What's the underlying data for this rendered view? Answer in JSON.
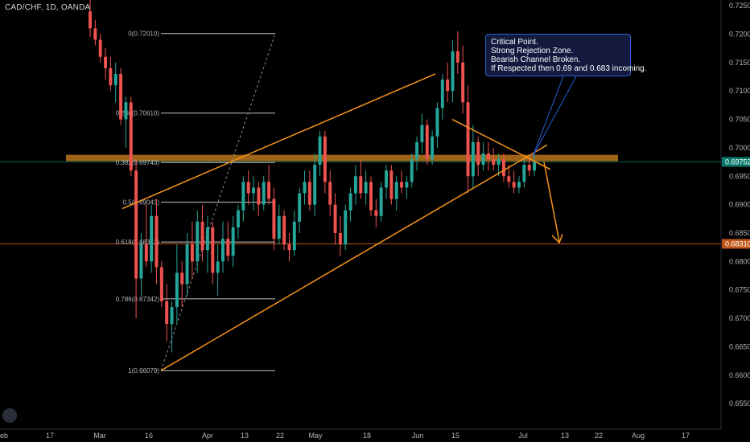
{
  "header": {
    "symbol_line": "CAD/CHF, 1D, OANDA"
  },
  "callout": {
    "lines": [
      "Critical Point.",
      "Strong Rejection Zone.",
      "Bearish Channel Broken.",
      "If Respected then 0.69 and 0.683 incoming."
    ]
  },
  "colors": {
    "background": "#000000",
    "up": "#26a69a",
    "down": "#ef5350",
    "trend": "#f7941d",
    "zone": "#b8741a",
    "price_badge": "#0b7a6e",
    "target_badge": "#c0571a",
    "callout_bg": "#131a3e",
    "callout_border": "#2a5fd6"
  },
  "chart_data": {
    "type": "candlestick",
    "title": "CAD/CHF, 1D, OANDA",
    "ylim": [
      0.6505,
      0.726
    ],
    "y_ticks": [
      "0.72500",
      "0.72000",
      "0.71500",
      "0.71000",
      "0.70500",
      "0.70000",
      "0.69500",
      "0.69000",
      "0.68500",
      "0.68000",
      "0.67500",
      "0.67000",
      "0.66500",
      "0.66000",
      "0.65500"
    ],
    "x_ticks": [
      "eb",
      "17",
      "Mar",
      "16",
      "Apr",
      "13",
      "22",
      "May",
      "18",
      "Jun",
      "15",
      "Jul",
      "13",
      "22",
      "Aug",
      "17"
    ],
    "current_price": "0.69752",
    "target_price": "0.68310",
    "fib_levels": [
      {
        "label": "0(0.72010)",
        "value": 0.7201
      },
      {
        "label": "0.236(0.70610)",
        "value": 0.7061
      },
      {
        "label": "0.382(0.69743)",
        "value": 0.69743
      },
      {
        "label": "0.5(0.69043)",
        "value": 0.69043
      },
      {
        "label": "0.618(0.68342)",
        "value": 0.68342
      },
      {
        "label": "0.786(0.67342)",
        "value": 0.67342
      },
      {
        "label": "1(0.66079)",
        "value": 0.66079
      }
    ],
    "resistance_zone": 0.6982,
    "support_line": 0.6831,
    "ohlc": [
      [
        0.724,
        0.726,
        0.7195,
        0.721
      ],
      [
        0.721,
        0.7225,
        0.718,
        0.719
      ],
      [
        0.719,
        0.72,
        0.715,
        0.716
      ],
      [
        0.716,
        0.7175,
        0.712,
        0.714
      ],
      [
        0.714,
        0.716,
        0.71,
        0.711
      ],
      [
        0.711,
        0.715,
        0.708,
        0.713
      ],
      [
        0.713,
        0.714,
        0.704,
        0.705
      ],
      [
        0.705,
        0.709,
        0.7,
        0.708
      ],
      [
        0.708,
        0.709,
        0.695,
        0.696
      ],
      [
        0.696,
        0.698,
        0.67,
        0.677
      ],
      [
        0.677,
        0.685,
        0.674,
        0.683
      ],
      [
        0.683,
        0.69,
        0.679,
        0.68
      ],
      [
        0.68,
        0.69,
        0.678,
        0.688
      ],
      [
        0.688,
        0.691,
        0.676,
        0.679
      ],
      [
        0.679,
        0.68,
        0.672,
        0.673
      ],
      [
        0.673,
        0.676,
        0.666,
        0.669
      ],
      [
        0.669,
        0.673,
        0.664,
        0.672
      ],
      [
        0.672,
        0.683,
        0.669,
        0.678
      ],
      [
        0.678,
        0.68,
        0.672,
        0.676
      ],
      [
        0.676,
        0.685,
        0.674,
        0.683
      ],
      [
        0.683,
        0.687,
        0.677,
        0.68
      ],
      [
        0.68,
        0.689,
        0.678,
        0.687
      ],
      [
        0.687,
        0.69,
        0.68,
        0.682
      ],
      [
        0.682,
        0.688,
        0.678,
        0.686
      ],
      [
        0.686,
        0.687,
        0.676,
        0.678
      ],
      [
        0.678,
        0.683,
        0.674,
        0.68
      ],
      [
        0.68,
        0.687,
        0.678,
        0.684
      ],
      [
        0.684,
        0.687,
        0.68,
        0.681
      ],
      [
        0.681,
        0.688,
        0.679,
        0.686
      ],
      [
        0.686,
        0.69,
        0.684,
        0.689
      ],
      [
        0.689,
        0.695,
        0.687,
        0.694
      ],
      [
        0.694,
        0.696,
        0.69,
        0.692
      ],
      [
        0.692,
        0.695,
        0.689,
        0.693
      ],
      [
        0.693,
        0.694,
        0.688,
        0.69
      ],
      [
        0.69,
        0.695,
        0.689,
        0.694
      ],
      [
        0.694,
        0.697,
        0.69,
        0.691
      ],
      [
        0.691,
        0.693,
        0.682,
        0.684
      ],
      [
        0.684,
        0.69,
        0.683,
        0.688
      ],
      [
        0.688,
        0.689,
        0.682,
        0.683
      ],
      [
        0.683,
        0.685,
        0.68,
        0.682
      ],
      [
        0.682,
        0.689,
        0.681,
        0.687
      ],
      [
        0.687,
        0.693,
        0.685,
        0.692
      ],
      [
        0.692,
        0.696,
        0.69,
        0.694
      ],
      [
        0.694,
        0.696,
        0.689,
        0.69
      ],
      [
        0.69,
        0.699,
        0.688,
        0.697
      ],
      [
        0.697,
        0.703,
        0.695,
        0.702
      ],
      [
        0.702,
        0.703,
        0.692,
        0.694
      ],
      [
        0.694,
        0.696,
        0.688,
        0.69
      ],
      [
        0.69,
        0.692,
        0.683,
        0.685
      ],
      [
        0.685,
        0.688,
        0.681,
        0.683
      ],
      [
        0.683,
        0.69,
        0.682,
        0.689
      ],
      [
        0.689,
        0.693,
        0.687,
        0.692
      ],
      [
        0.692,
        0.697,
        0.69,
        0.695
      ],
      [
        0.695,
        0.698,
        0.691,
        0.692
      ],
      [
        0.692,
        0.696,
        0.69,
        0.694
      ],
      [
        0.694,
        0.695,
        0.688,
        0.689
      ],
      [
        0.689,
        0.691,
        0.686,
        0.688
      ],
      [
        0.688,
        0.694,
        0.687,
        0.693
      ],
      [
        0.693,
        0.697,
        0.691,
        0.696
      ],
      [
        0.696,
        0.697,
        0.69,
        0.691
      ],
      [
        0.691,
        0.695,
        0.689,
        0.694
      ],
      [
        0.694,
        0.696,
        0.692,
        0.693
      ],
      [
        0.693,
        0.695,
        0.691,
        0.694
      ],
      [
        0.694,
        0.699,
        0.693,
        0.698
      ],
      [
        0.698,
        0.702,
        0.696,
        0.701
      ],
      [
        0.701,
        0.706,
        0.699,
        0.704
      ],
      [
        0.704,
        0.705,
        0.697,
        0.698
      ],
      [
        0.698,
        0.703,
        0.697,
        0.702
      ],
      [
        0.702,
        0.708,
        0.7,
        0.707
      ],
      [
        0.707,
        0.713,
        0.705,
        0.712
      ],
      [
        0.712,
        0.715,
        0.708,
        0.71
      ],
      [
        0.71,
        0.719,
        0.708,
        0.717
      ],
      [
        0.717,
        0.7205,
        0.713,
        0.715
      ],
      [
        0.715,
        0.718,
        0.706,
        0.708
      ],
      [
        0.708,
        0.711,
        0.692,
        0.695
      ],
      [
        0.695,
        0.704,
        0.693,
        0.701
      ],
      [
        0.701,
        0.702,
        0.695,
        0.697
      ],
      [
        0.697,
        0.701,
        0.696,
        0.699
      ],
      [
        0.699,
        0.701,
        0.696,
        0.698
      ],
      [
        0.698,
        0.7,
        0.696,
        0.697
      ],
      [
        0.697,
        0.699,
        0.695,
        0.698
      ],
      [
        0.698,
        0.699,
        0.694,
        0.695
      ],
      [
        0.695,
        0.697,
        0.693,
        0.694
      ],
      [
        0.694,
        0.696,
        0.692,
        0.693
      ],
      [
        0.693,
        0.695,
        0.692,
        0.694
      ],
      [
        0.694,
        0.698,
        0.693,
        0.697
      ],
      [
        0.697,
        0.698,
        0.695,
        0.696
      ],
      [
        0.696,
        0.699,
        0.695,
        0.6975
      ]
    ]
  }
}
